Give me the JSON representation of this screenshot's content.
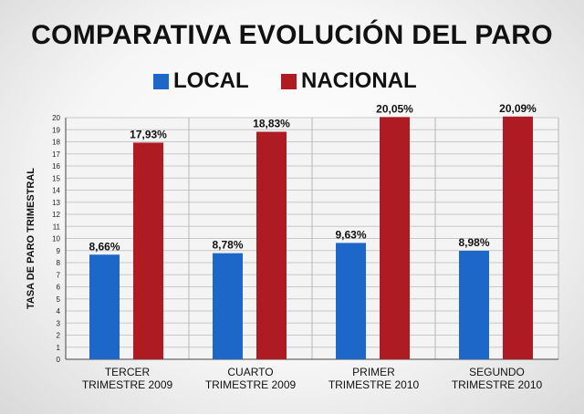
{
  "chart_data": {
    "type": "bar",
    "title": "COMPARATIVA EVOLUCIÓN DEL PARO",
    "ylabel": "TASA DE PARO TRIMESTRAL",
    "xlabel": "",
    "ylim": [
      0,
      20
    ],
    "yticks": [
      0,
      1,
      2,
      3,
      4,
      5,
      6,
      7,
      8,
      9,
      10,
      11,
      12,
      13,
      14,
      15,
      16,
      17,
      18,
      19,
      20
    ],
    "categories": [
      [
        "TERCER",
        "TRIMESTRE 2009"
      ],
      [
        "CUARTO",
        "TRIMESTRE 2009"
      ],
      [
        "PRIMER",
        "TRIMESTRE 2010"
      ],
      [
        "SEGUNDO",
        "TRIMESTRE 2010"
      ]
    ],
    "series": [
      {
        "name": "LOCAL",
        "color": "#1c67c8",
        "values": [
          8.66,
          8.78,
          9.63,
          8.98
        ],
        "labels": [
          "8,66%",
          "8,78%",
          "9,63%",
          "8,98%"
        ]
      },
      {
        "name": "NACIONAL",
        "color": "#ae1b22",
        "values": [
          17.93,
          18.83,
          20.05,
          20.09
        ],
        "labels": [
          "17,93%",
          "18,83%",
          "20,05%",
          "20,09%"
        ]
      }
    ],
    "legend": "top-center",
    "grid": true
  }
}
